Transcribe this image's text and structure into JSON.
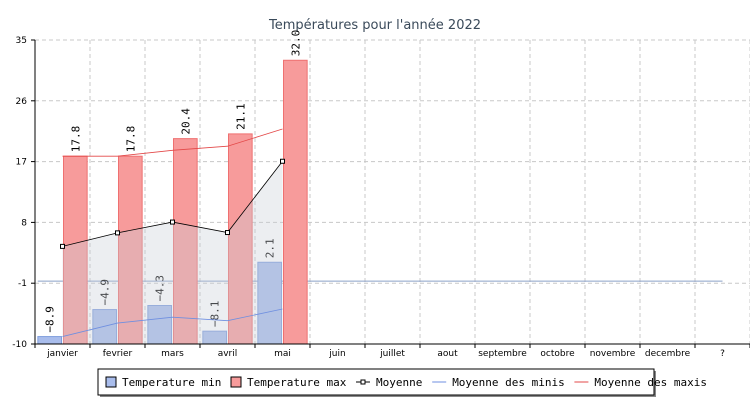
{
  "chart_data": {
    "type": "bar",
    "title": "Températures pour l'année 2022",
    "categories": [
      "janvier",
      "fevrier",
      "mars",
      "avril",
      "mai",
      "juin",
      "juillet",
      "aout",
      "septembre",
      "octobre",
      "novembre",
      "decembre",
      "?"
    ],
    "ylim": [
      -10,
      35
    ],
    "yticks": [
      35,
      26,
      17,
      8,
      -1,
      -10
    ],
    "grid": true,
    "legend_position": "bottom",
    "bar_series": [
      {
        "name": "Temperature min",
        "values": [
          -8.9,
          -4.9,
          -4.3,
          -8.1,
          2.1
        ],
        "color": "#a9bdec",
        "stroke": "#7f9ddd"
      },
      {
        "name": "Temperature max",
        "values": [
          17.8,
          17.8,
          20.4,
          21.1,
          32.0
        ],
        "color": "#f79b9b",
        "stroke": "#ef7070"
      }
    ],
    "line_series": [
      {
        "name": "Moyenne",
        "values": [
          4.45,
          6.45,
          8.05,
          6.5,
          17.05
        ],
        "color": "#000000",
        "markers": true,
        "filled": true
      },
      {
        "name": "Moyenne des minis",
        "values": [
          -8.9,
          -6.9,
          -6.03,
          -6.55,
          -4.82
        ],
        "color": "#6f8fe0"
      },
      {
        "name": "Moyenne des maxis",
        "values": [
          17.8,
          17.8,
          18.67,
          19.28,
          21.82
        ],
        "color": "#e34848"
      }
    ],
    "reference_line": {
      "value": -0.7,
      "color": "#8aa0c8"
    }
  }
}
